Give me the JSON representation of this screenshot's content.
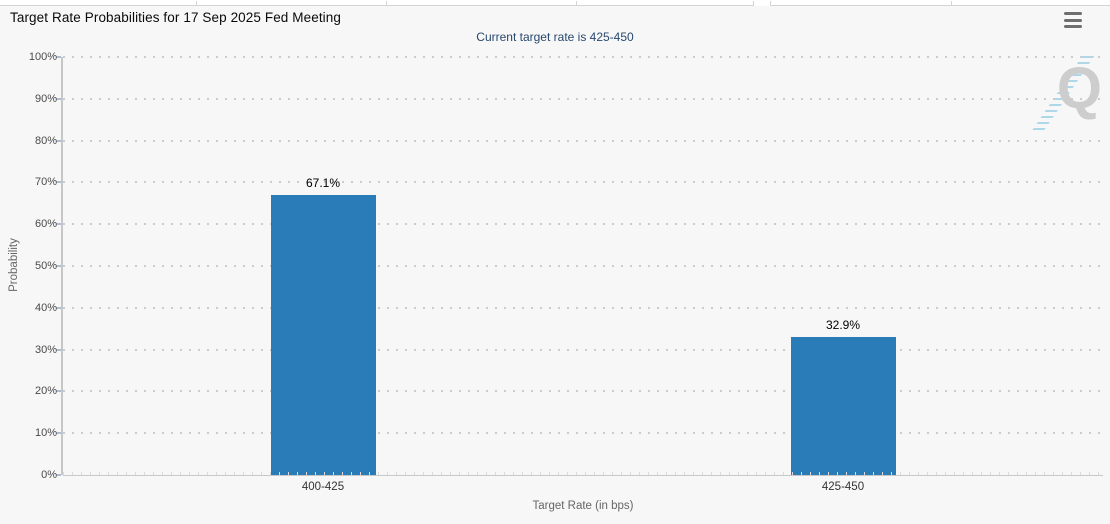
{
  "header": {
    "menu_icon": "hamburger-icon"
  },
  "chart_data": {
    "type": "bar",
    "title": "Target Rate Probabilities for 17 Sep 2025 Fed Meeting",
    "subtitle": "Current target rate is 425-450",
    "categories": [
      "400-425",
      "425-450"
    ],
    "values": [
      67.1,
      32.9
    ],
    "value_labels": [
      "67.1%",
      "32.9%"
    ],
    "xlabel": "Target Rate (in bps)",
    "ylabel": "Probability",
    "ylim": [
      0,
      100
    ],
    "ytick_step": 10,
    "ytick_labels": [
      "0%",
      "10%",
      "20%",
      "30%",
      "40%",
      "50%",
      "60%",
      "70%",
      "80%",
      "90%",
      "100%"
    ],
    "grid": "dotted horizontal gridlines",
    "legend": "none",
    "watermark_letter": "Q"
  },
  "colors": {
    "bar": "#2a7cb9",
    "subtitle_text": "#28486e",
    "plot_background": "#f7f7f7",
    "gridline": "#cccccc",
    "watermark_gray": "#c6c6c6",
    "watermark_blue": "#a2d2e8"
  }
}
